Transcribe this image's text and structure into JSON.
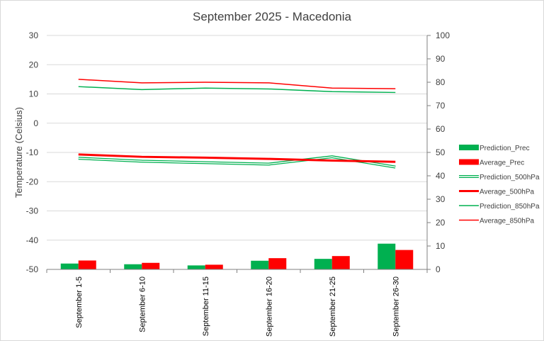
{
  "chart_data": {
    "type": "bar",
    "title": "September 2025 - Macedonia",
    "ylabel": "Temperature (Celsius)",
    "y2label": "",
    "categories": [
      "September 1-5",
      "September 6-10",
      "September 11-15",
      "September 16-20",
      "September 21-25",
      "September 26-30"
    ],
    "ylim": [
      -50,
      30
    ],
    "y_ticks": [
      30,
      20,
      10,
      0,
      -10,
      -20,
      -30,
      -40,
      -50
    ],
    "y2lim": [
      0,
      100
    ],
    "y2_ticks": [
      100,
      90,
      80,
      70,
      60,
      50,
      40,
      30,
      20,
      10,
      0
    ],
    "grid": true,
    "legend_position": "right",
    "series": [
      {
        "name": "Prediction_Prec",
        "type": "bar",
        "axis": "y2",
        "color": "#00b050",
        "values": [
          2.5,
          2.2,
          1.7,
          3.7,
          4.5,
          11.0
        ]
      },
      {
        "name": "Average_Prec",
        "type": "bar",
        "axis": "y2",
        "color": "#ff0000",
        "values": [
          3.8,
          2.8,
          2.0,
          4.8,
          5.7,
          8.3
        ]
      },
      {
        "name": "Prediction_500hPa",
        "type": "line",
        "style": "double",
        "axis": "y",
        "color": "#00b050",
        "values": [
          -12.0,
          -13.0,
          -13.5,
          -14.0,
          -11.5,
          -15.0
        ]
      },
      {
        "name": "Average_500hPa",
        "type": "line",
        "style": "thick",
        "axis": "y",
        "color": "#ff0000",
        "values": [
          -10.7,
          -11.5,
          -11.8,
          -12.2,
          -12.8,
          -13.2
        ]
      },
      {
        "name": "Prediction_850hPa",
        "type": "line",
        "style": "thin",
        "axis": "y",
        "color": "#00b050",
        "values": [
          12.5,
          11.5,
          12.0,
          11.7,
          10.8,
          10.5
        ]
      },
      {
        "name": "Average_850hPa",
        "type": "line",
        "style": "thin",
        "axis": "y",
        "color": "#ff0000",
        "values": [
          15.0,
          13.8,
          14.0,
          13.8,
          12.0,
          11.8
        ]
      }
    ]
  }
}
